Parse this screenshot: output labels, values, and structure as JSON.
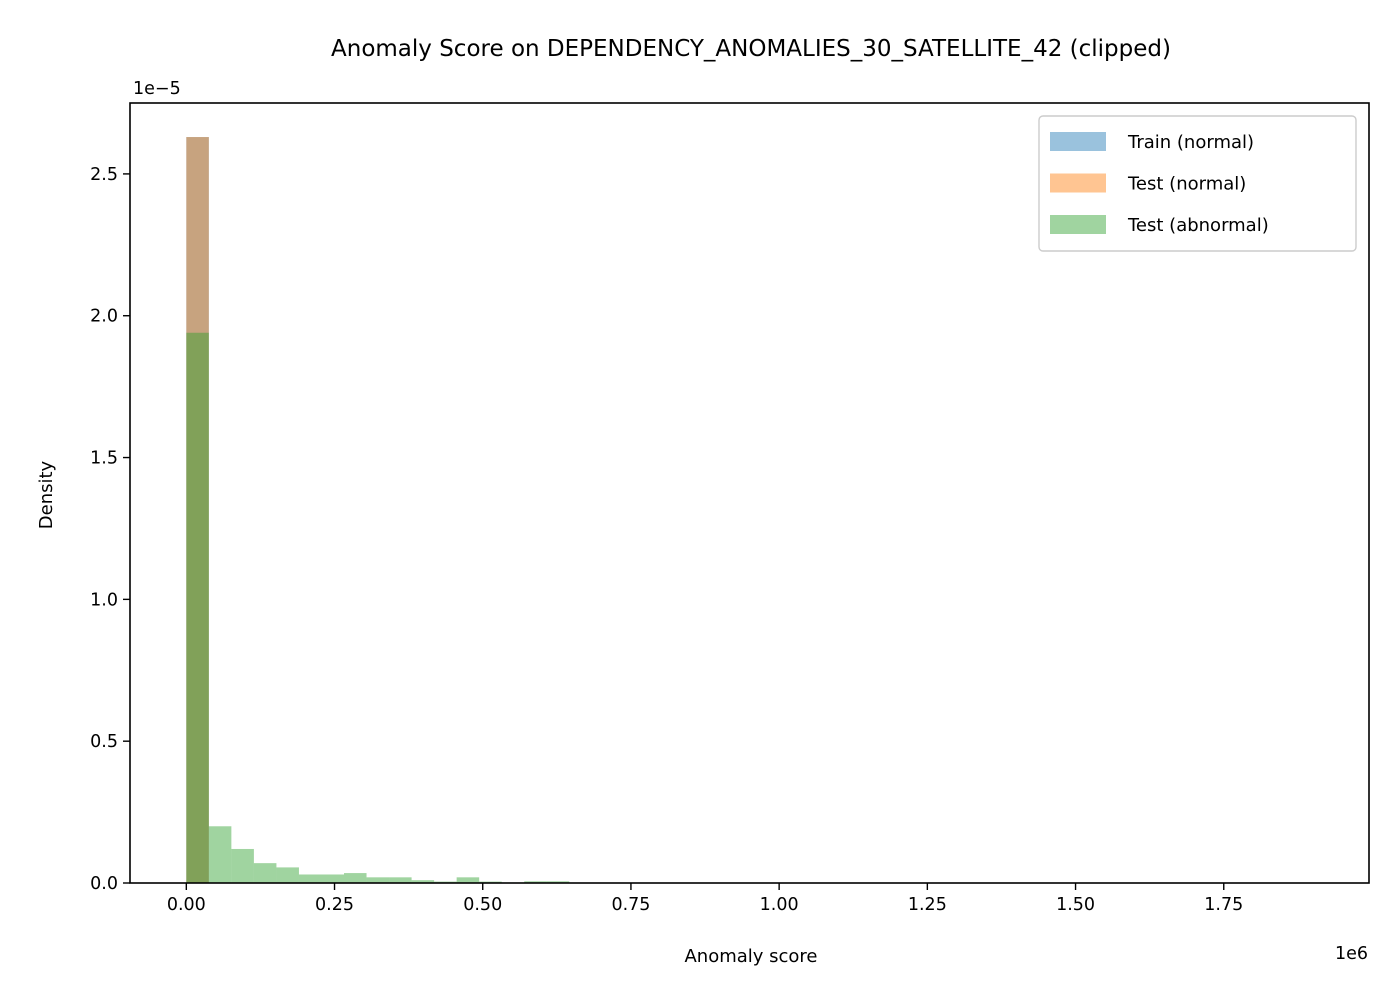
{
  "chart_data": {
    "type": "bar",
    "title": "Anomaly Score on DEPENDENCY_ANOMALIES_30_SATELLITE_42 (clipped)",
    "xlabel": "Anomaly score",
    "ylabel": "Density",
    "x_offset_text": "1e6",
    "y_offset_text": "1e−5",
    "xlim": [
      -95000,
      1995000
    ],
    "ylim": [
      0,
      2.75e-05
    ],
    "x_ticks": [
      0,
      250000,
      500000,
      750000,
      1000000,
      1250000,
      1500000,
      1750000
    ],
    "x_tick_labels": [
      "0.00",
      "0.25",
      "0.50",
      "0.75",
      "1.00",
      "1.25",
      "1.50",
      "1.75"
    ],
    "y_ticks": [
      0,
      5e-06,
      1e-05,
      1.5e-05,
      2e-05,
      2.5e-05
    ],
    "y_tick_labels": [
      "0.0",
      "0.5",
      "1.0",
      "1.5",
      "2.0",
      "2.5"
    ],
    "grid": false,
    "legend_position": "top-right",
    "bin_edges": [
      0,
      38000,
      76000,
      114000,
      152000,
      190000,
      228000,
      266000,
      304000,
      342000,
      380000,
      418000,
      456000,
      494000,
      532000,
      570000,
      608000,
      646000
    ],
    "series": [
      {
        "name": "Train (normal)",
        "color": "#1f77b4",
        "opacity": 0.45,
        "values": [
          2.63e-05,
          0,
          0,
          0,
          0,
          0,
          0,
          0,
          0,
          0,
          0,
          0,
          0,
          0,
          0,
          0,
          0
        ]
      },
      {
        "name": "Test (normal)",
        "color": "#ff7f0e",
        "opacity": 0.45,
        "values": [
          2.63e-05,
          0,
          0,
          0,
          0,
          0,
          0,
          0,
          0,
          0,
          0,
          0,
          0,
          0,
          0,
          0,
          0
        ]
      },
      {
        "name": "Test (abnormal)",
        "color": "#2ca02c",
        "opacity": 0.45,
        "values": [
          1.94e-05,
          2e-06,
          1.2e-06,
          7e-07,
          5.5e-07,
          3e-07,
          3e-07,
          3.5e-07,
          2e-07,
          2e-07,
          1e-07,
          5e-08,
          2e-07,
          5e-08,
          2e-08,
          6e-08,
          6e-08
        ]
      }
    ]
  }
}
